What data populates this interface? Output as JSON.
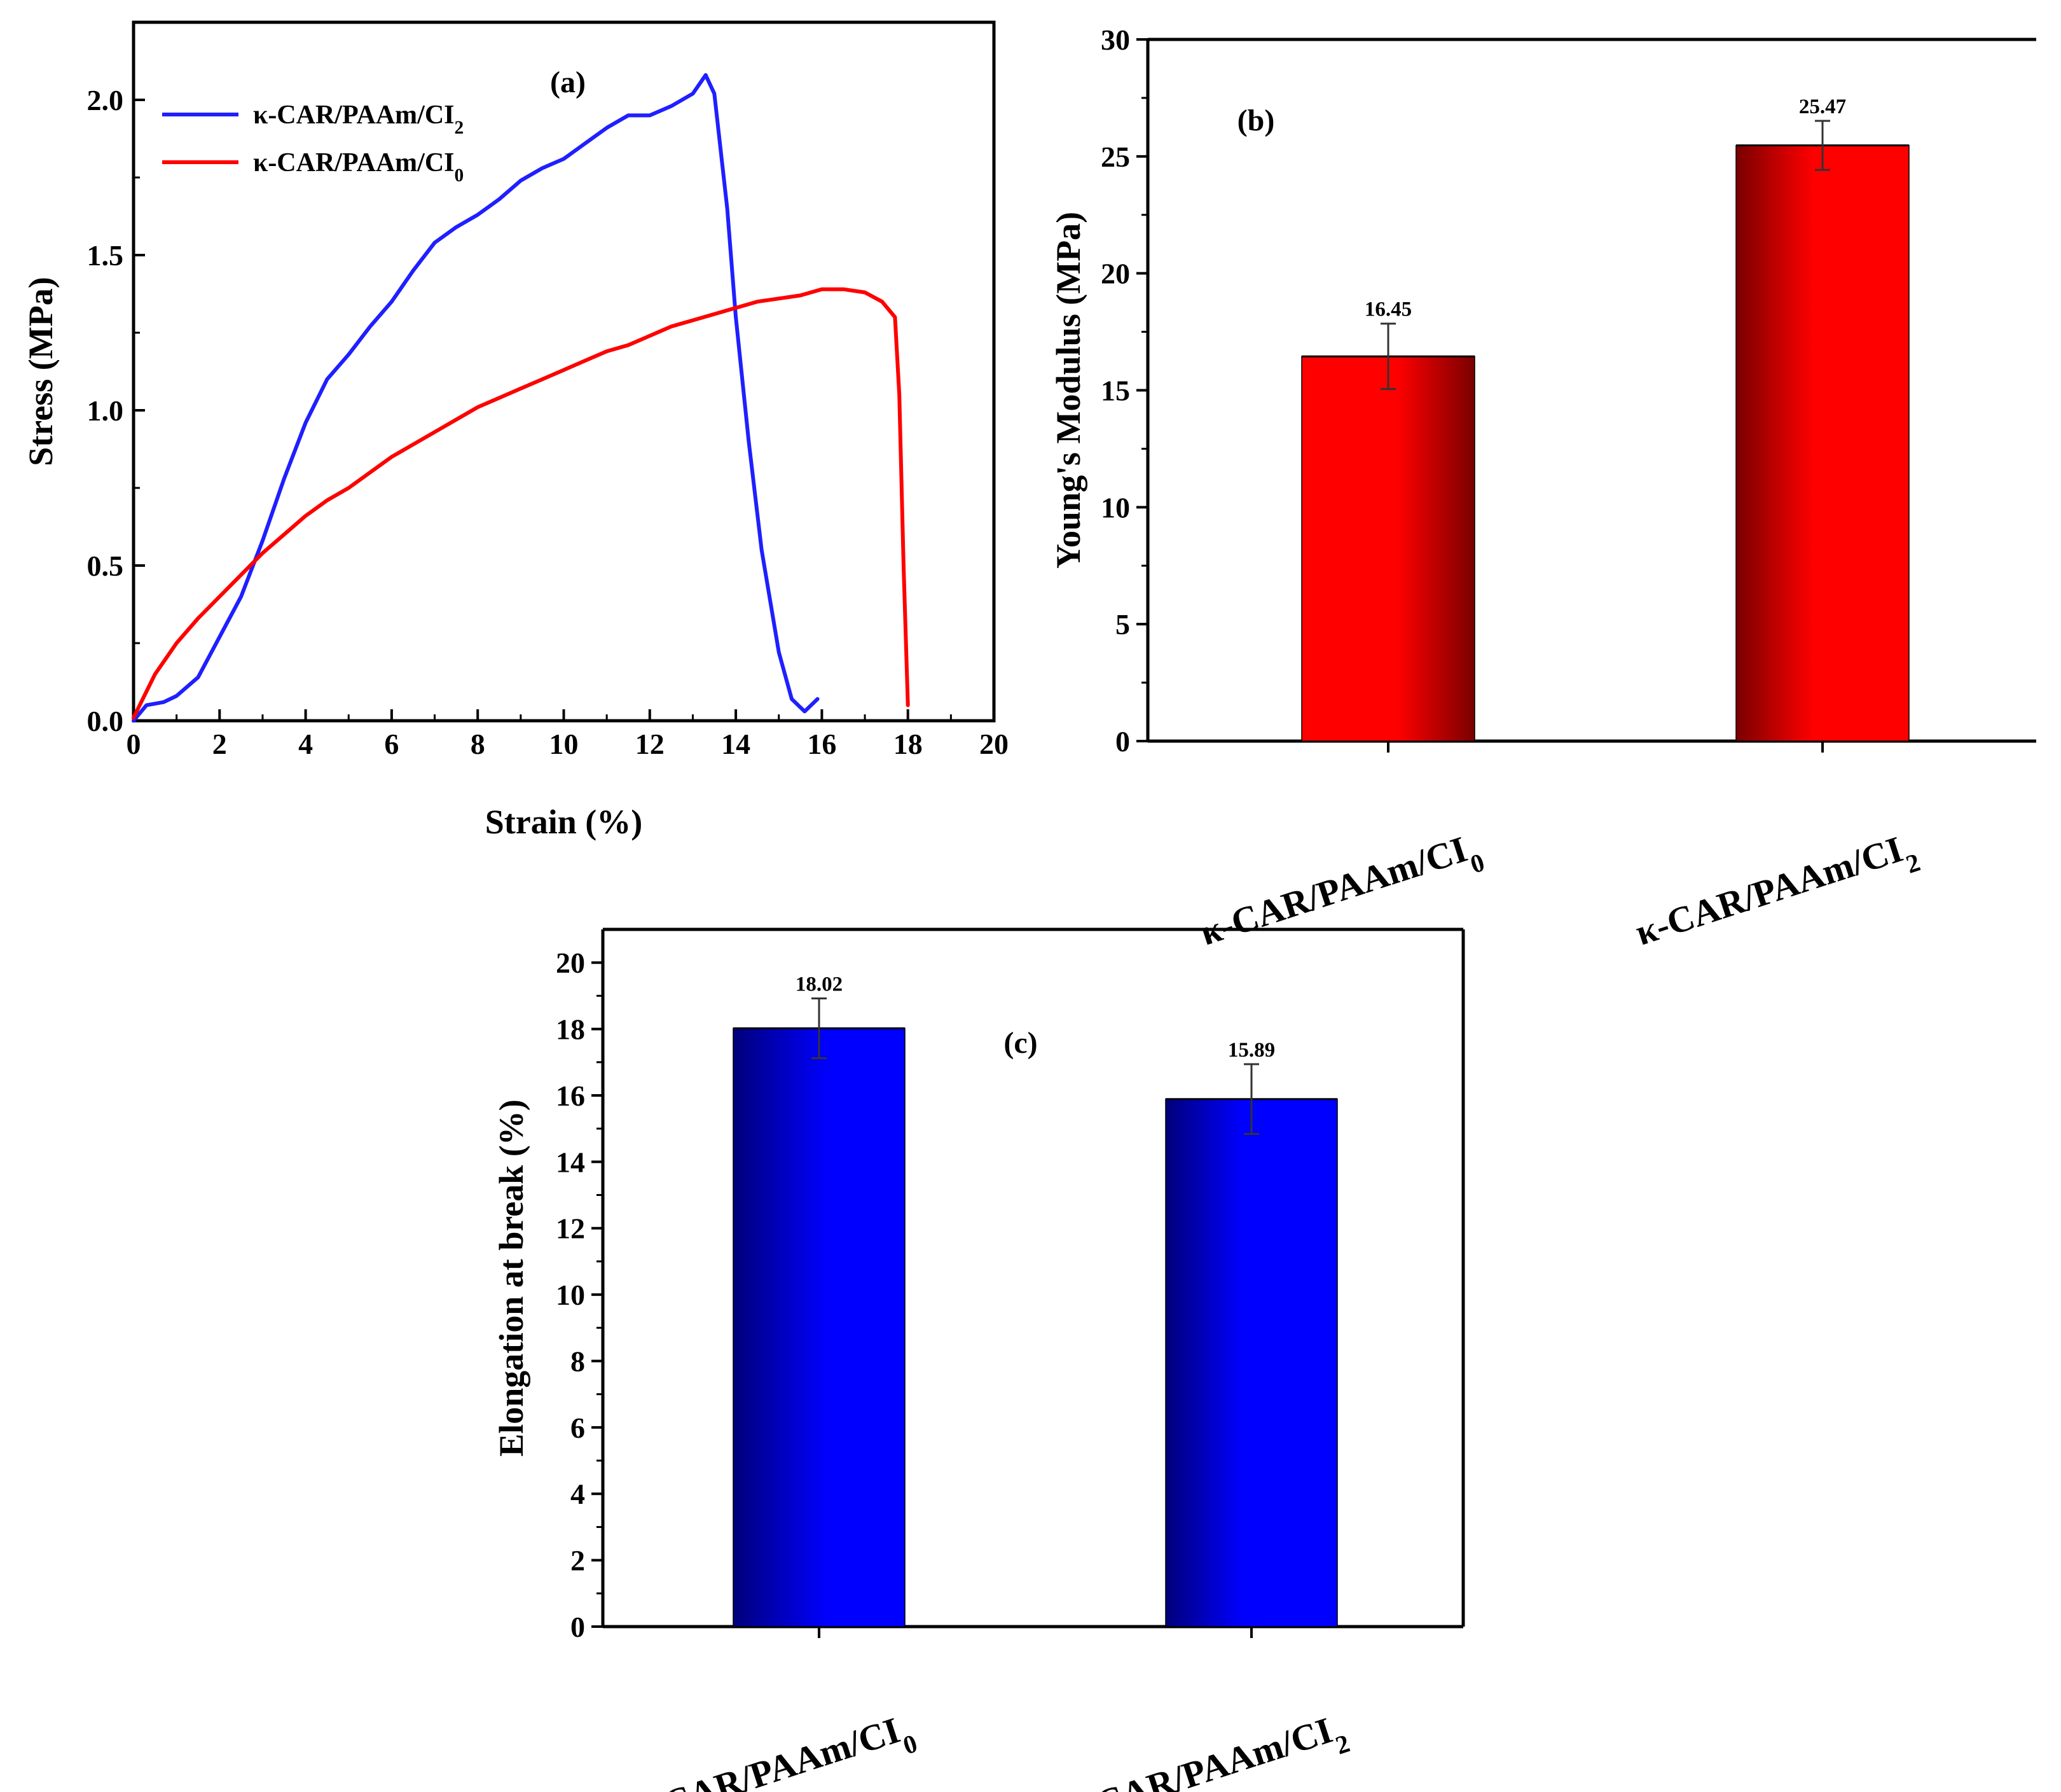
{
  "colors": {
    "red": "#ff0000",
    "dark_red": "#7a0000",
    "blue": "#0000ff",
    "blue_line": "#1f1fff",
    "dark_blue": "#00007a",
    "axis": "#000000"
  },
  "chart_data": [
    {
      "type": "line",
      "panel_label": "(a)",
      "xlabel": "Strain (%)",
      "ylabel": "Stress (MPa)",
      "xlim": [
        0,
        20
      ],
      "ylim": [
        0,
        2.25
      ],
      "x_ticks": [
        "0",
        "2",
        "4",
        "6",
        "8",
        "10",
        "12",
        "14",
        "16",
        "18",
        "20"
      ],
      "y_ticks": [
        "0.0",
        "0.5",
        "1.0",
        "1.5",
        "2.0"
      ],
      "legend_position": "top-left",
      "series": [
        {
          "name": "κ-CAR/PAAm/CI",
          "subscript": "2",
          "color": "#1f1fff",
          "x": [
            0,
            0.3,
            0.7,
            1.0,
            1.5,
            2.0,
            2.5,
            3.0,
            3.5,
            4.0,
            4.5,
            5.0,
            5.5,
            6.0,
            6.5,
            7.0,
            7.5,
            8.0,
            8.5,
            9.0,
            9.5,
            10.0,
            10.5,
            11.0,
            11.5,
            12.0,
            12.5,
            13.0,
            13.3,
            13.5,
            13.8,
            14.0,
            14.3,
            14.6,
            15.0,
            15.3,
            15.6,
            15.9
          ],
          "y": [
            0,
            0.05,
            0.06,
            0.08,
            0.14,
            0.27,
            0.4,
            0.58,
            0.78,
            0.96,
            1.1,
            1.18,
            1.27,
            1.35,
            1.45,
            1.54,
            1.59,
            1.63,
            1.68,
            1.74,
            1.78,
            1.81,
            1.86,
            1.91,
            1.95,
            1.95,
            1.98,
            2.02,
            2.08,
            2.02,
            1.65,
            1.3,
            0.9,
            0.55,
            0.22,
            0.07,
            0.03,
            0.07
          ]
        },
        {
          "name": "κ-CAR/PAAm/CI",
          "subscript": "0",
          "color": "#ff0000",
          "x": [
            0,
            0.5,
            1.0,
            1.5,
            2.0,
            2.5,
            3.0,
            3.5,
            4.0,
            4.5,
            5.0,
            5.5,
            6.0,
            6.5,
            7.0,
            7.5,
            8.0,
            8.5,
            9.0,
            9.5,
            10.0,
            10.5,
            11.0,
            11.5,
            12.0,
            12.5,
            13.0,
            13.5,
            14.0,
            14.5,
            15.0,
            15.5,
            16.0,
            16.5,
            17.0,
            17.4,
            17.7,
            17.8,
            17.9,
            18.0
          ],
          "y": [
            0.01,
            0.15,
            0.25,
            0.33,
            0.4,
            0.47,
            0.54,
            0.6,
            0.66,
            0.71,
            0.75,
            0.8,
            0.85,
            0.89,
            0.93,
            0.97,
            1.01,
            1.04,
            1.07,
            1.1,
            1.13,
            1.16,
            1.19,
            1.21,
            1.24,
            1.27,
            1.29,
            1.31,
            1.33,
            1.35,
            1.36,
            1.37,
            1.39,
            1.39,
            1.38,
            1.35,
            1.3,
            1.05,
            0.5,
            0.05
          ]
        }
      ]
    },
    {
      "type": "bar",
      "panel_label": "(b)",
      "xlabel": "",
      "ylabel": "Young's Modulus (MPa)",
      "ylim": [
        0,
        30
      ],
      "y_ticks": [
        "0",
        "5",
        "10",
        "15",
        "20",
        "25",
        "30"
      ],
      "categories": [
        "κ-CAR/PAAm/CI",
        "κ-CAR/PAAm/CI"
      ],
      "category_subscripts": [
        "0",
        "2"
      ],
      "values": [
        16.45,
        25.47
      ],
      "value_labels": [
        "16.45",
        "25.47"
      ],
      "errors": [
        1.4,
        1.05
      ],
      "color": "#ff0000"
    },
    {
      "type": "bar",
      "panel_label": "(c)",
      "xlabel": "",
      "ylabel": "Elongation at break (%)",
      "ylim": [
        0,
        21
      ],
      "y_ticks": [
        "0",
        "2",
        "4",
        "6",
        "8",
        "10",
        "12",
        "14",
        "16",
        "18",
        "20"
      ],
      "categories": [
        "κ-CAR/PAAm/CI",
        "κ-CAR/PAAm/CI"
      ],
      "category_subscripts": [
        "0",
        "2"
      ],
      "values": [
        18.02,
        15.89
      ],
      "value_labels": [
        "18.02",
        "15.89"
      ],
      "errors": [
        0.9,
        1.05
      ],
      "color": "#0000ff"
    }
  ]
}
